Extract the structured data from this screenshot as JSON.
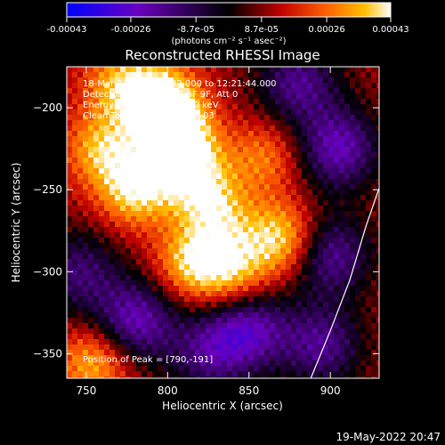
{
  "chart_data": {
    "type": "heatmap",
    "title": "Reconstructed RHESSI Image",
    "xlabel": "Heliocentric X (arcsec)",
    "ylabel": "Heliocentric Y (arcsec)",
    "xlim": [
      738,
      930
    ],
    "ylim": [
      -365,
      -175
    ],
    "x_ticks": [
      "750",
      "800",
      "850",
      "900"
    ],
    "x_tick_values": [
      750,
      800,
      850,
      900
    ],
    "y_ticks": [
      "-200",
      "-250",
      "-300",
      "-350"
    ],
    "y_tick_values": [
      -200,
      -250,
      -300,
      -350
    ],
    "colorbar": {
      "ticks": [
        "-0.00043",
        "-0.00026",
        "-8.7e-05",
        "8.7e-05",
        "0.00026",
        "0.00043"
      ],
      "tick_values": [
        -0.00043,
        -0.00026,
        -8.7e-05,
        8.7e-05,
        0.00026,
        0.00043
      ],
      "range": [
        -0.00043,
        0.00043
      ],
      "unit_label": "(photons cm⁻² s⁻¹ asec⁻²)",
      "colors": [
        "#0000ff",
        "#6a00c0",
        "#000000",
        "#c00000",
        "#ff6000",
        "#ffc000",
        "#ffffff"
      ]
    },
    "annotations": [
      "18-Mar-2002 12:16:32.000 to 12:21:44.000",
      "Detectors: 3F 4F 6F 7F 8F 9F, Att 0",
      "Energy Range: 12.0 - 25.0 keV",
      "Clean    Total counts: 9.13E+03",
      "Position of Peak = [790,-191]"
    ],
    "limb_curve": [
      [
        888,
        -365
      ],
      [
        900,
        -336
      ],
      [
        912,
        -305
      ],
      [
        922,
        -272
      ],
      [
        930,
        -249
      ]
    ],
    "hotspots": [
      {
        "x": 805,
        "y": -215,
        "intensity": 1.0
      },
      {
        "x": 780,
        "y": -250,
        "intensity": 0.85
      },
      {
        "x": 815,
        "y": -240,
        "intensity": 0.8
      },
      {
        "x": 795,
        "y": -195,
        "intensity": 0.95
      },
      {
        "x": 870,
        "y": -280,
        "intensity": 0.85
      },
      {
        "x": 840,
        "y": -300,
        "intensity": 0.7
      },
      {
        "x": 815,
        "y": -295,
        "intensity": 0.75
      },
      {
        "x": 760,
        "y": -225,
        "intensity": 0.7
      },
      {
        "x": 830,
        "y": -265,
        "intensity": 0.65
      },
      {
        "x": 755,
        "y": -355,
        "intensity": 0.7
      },
      {
        "x": 860,
        "y": -230,
        "intensity": 0.5
      },
      {
        "x": 770,
        "y": -185,
        "intensity": 0.6
      }
    ],
    "coldspots": [
      {
        "x": 780,
        "y": -330,
        "intensity": 0.85
      },
      {
        "x": 905,
        "y": -225,
        "intensity": 0.85
      },
      {
        "x": 880,
        "y": -185,
        "intensity": 0.7
      },
      {
        "x": 850,
        "y": -335,
        "intensity": 0.8
      },
      {
        "x": 895,
        "y": -345,
        "intensity": 0.7
      },
      {
        "x": 900,
        "y": -290,
        "intensity": 0.75
      },
      {
        "x": 745,
        "y": -300,
        "intensity": 0.6
      },
      {
        "x": 825,
        "y": -350,
        "intensity": 0.6
      }
    ]
  },
  "footer": {
    "date": "19-May-2022 20:47"
  }
}
